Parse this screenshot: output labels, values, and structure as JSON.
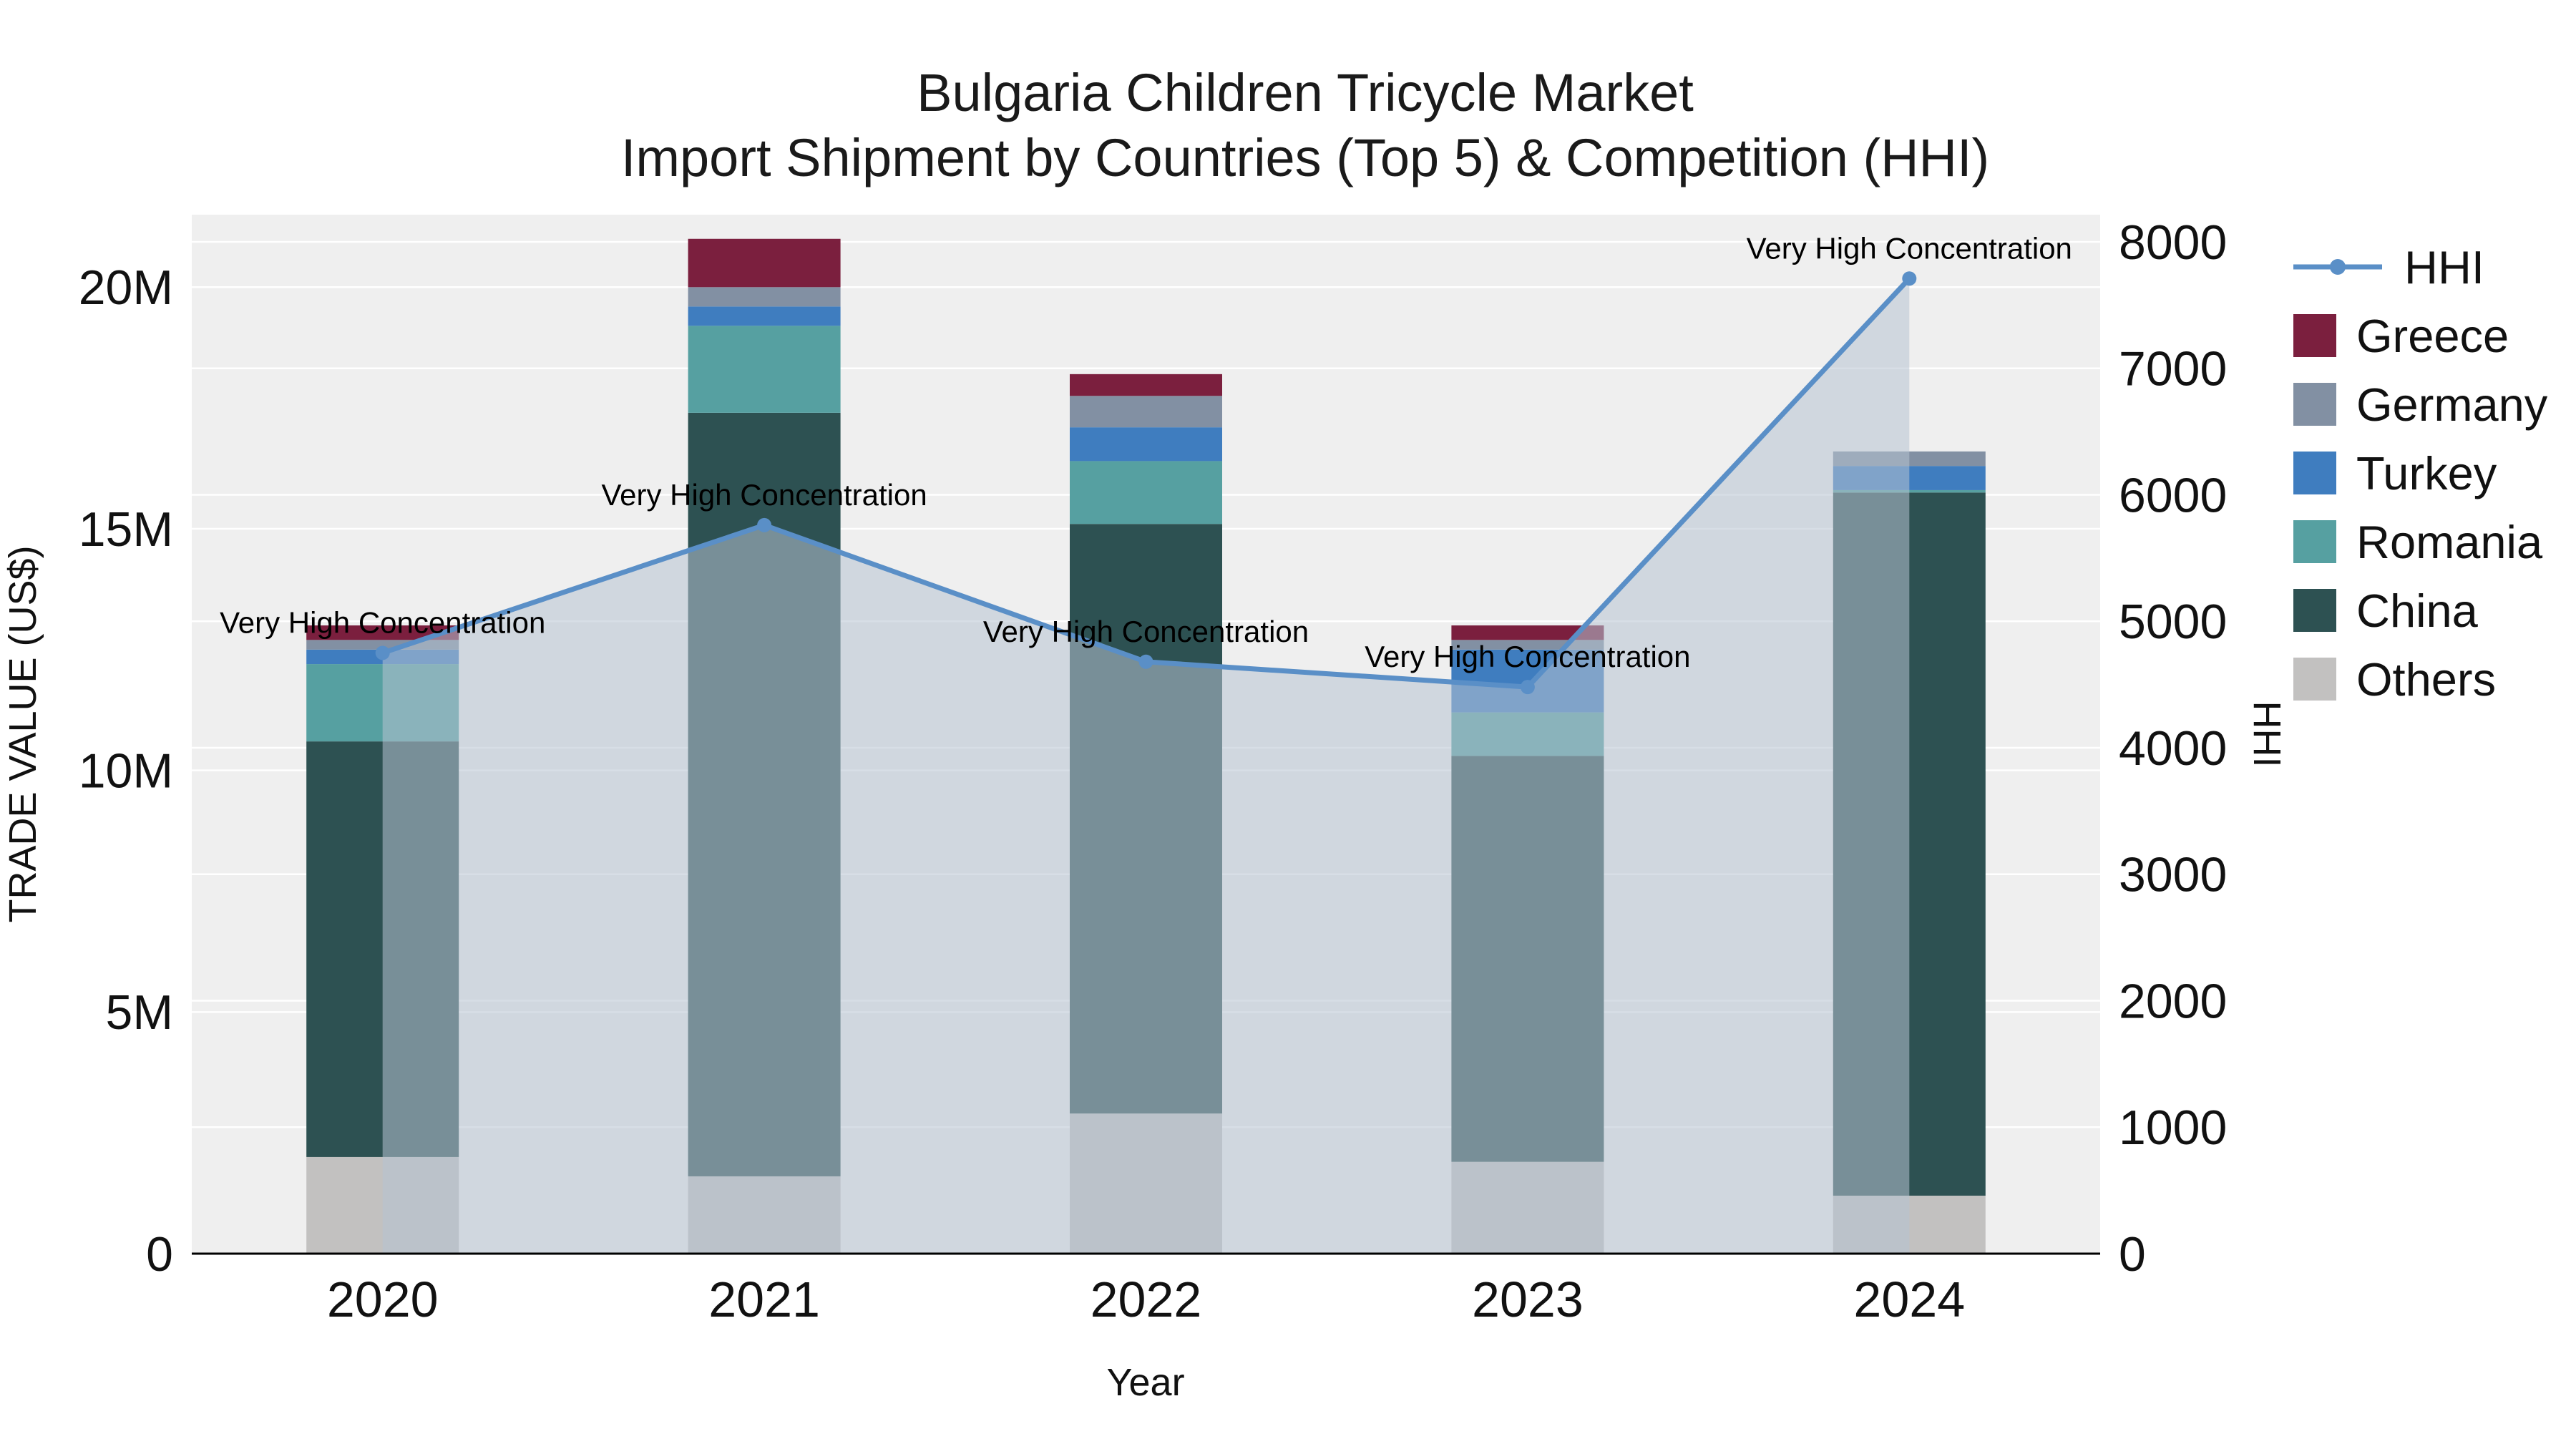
{
  "title": {
    "line1": "Bulgaria Children Tricycle Market",
    "line2": "Import Shipment by Countries (Top 5) & Competition (HHI)"
  },
  "axes": {
    "x_label": "Year",
    "left_label": "TRADE VALUE (US$)",
    "right_label": "HHI",
    "left_ticks": [
      {
        "label": "0",
        "value": 0
      },
      {
        "label": "5M",
        "value": 5000000
      },
      {
        "label": "10M",
        "value": 10000000
      },
      {
        "label": "15M",
        "value": 15000000
      },
      {
        "label": "20M",
        "value": 20000000
      }
    ],
    "right_ticks": [
      {
        "label": "0",
        "value": 0
      },
      {
        "label": "1000",
        "value": 1000
      },
      {
        "label": "2000",
        "value": 2000
      },
      {
        "label": "3000",
        "value": 3000
      },
      {
        "label": "4000",
        "value": 4000
      },
      {
        "label": "5000",
        "value": 5000
      },
      {
        "label": "6000",
        "value": 6000
      },
      {
        "label": "7000",
        "value": 7000
      },
      {
        "label": "8000",
        "value": 8000
      }
    ],
    "left_range": [
      0,
      21500000
    ],
    "right_range": [
      0,
      8215
    ],
    "plot_bg": "#efefef",
    "grid_color": "#ffffff"
  },
  "legend": {
    "items": [
      {
        "label": "HHI",
        "type": "line",
        "color": "#5a8fc7"
      },
      {
        "label": "Greece",
        "type": "swatch",
        "color": "#7b1f3e"
      },
      {
        "label": "Germany",
        "type": "swatch",
        "color": "#8290a3"
      },
      {
        "label": "Turkey",
        "type": "swatch",
        "color": "#3f7dbf"
      },
      {
        "label": "Romania",
        "type": "swatch",
        "color": "#56a0a1"
      },
      {
        "label": "China",
        "type": "swatch",
        "color": "#2d5152"
      },
      {
        "label": "Others",
        "type": "swatch",
        "color": "#c2c1c0"
      }
    ]
  },
  "chart_data": {
    "type": "bar",
    "variant": "stacked bars (left axis) + HHI line with shaded area (right axis)",
    "title": "Bulgaria Children Tricycle Market — Import Shipment by Countries (Top 5) & Competition (HHI)",
    "xlabel": "Year",
    "ylabel_left": "TRADE VALUE (US$)",
    "ylabel_right": "HHI",
    "unit": "million US$",
    "categories": [
      "2020",
      "2021",
      "2022",
      "2023",
      "2024"
    ],
    "series": [
      {
        "name": "Others",
        "color": "#c2c1c0",
        "values": [
          2.0,
          1.6,
          2.9,
          1.9,
          1.2
        ]
      },
      {
        "name": "China",
        "color": "#2d5152",
        "values": [
          8.6,
          15.8,
          12.2,
          8.4,
          14.55
        ]
      },
      {
        "name": "Romania",
        "color": "#56a0a1",
        "values": [
          1.6,
          1.8,
          1.3,
          0.9,
          0.05
        ]
      },
      {
        "name": "Turkey",
        "color": "#3f7dbf",
        "values": [
          0.3,
          0.4,
          0.7,
          1.3,
          0.5
        ]
      },
      {
        "name": "Germany",
        "color": "#8290a3",
        "values": [
          0.2,
          0.4,
          0.65,
          0.2,
          0.3
        ]
      },
      {
        "name": "Greece",
        "color": "#7b1f3e",
        "values": [
          0.3,
          1.0,
          0.45,
          0.3,
          0.0
        ]
      }
    ],
    "totals_million_usd": [
      13.0,
      21.0,
      18.2,
      13.0,
      16.6
    ],
    "hhi": {
      "name": "HHI",
      "axis": "right",
      "color": "#5a8fc7",
      "area_fill": "rgba(183,194,209,0.55)",
      "values": [
        4750,
        5760,
        4680,
        4480,
        7710
      ]
    },
    "annotations": [
      {
        "category": "2020",
        "text": "Very High Concentration"
      },
      {
        "category": "2021",
        "text": "Very High Concentration"
      },
      {
        "category": "2022",
        "text": "Very High Concentration"
      },
      {
        "category": "2023",
        "text": "Very High Concentration"
      },
      {
        "category": "2024",
        "text": "Very High Concentration"
      }
    ],
    "legend_position": "right",
    "grid": true
  }
}
